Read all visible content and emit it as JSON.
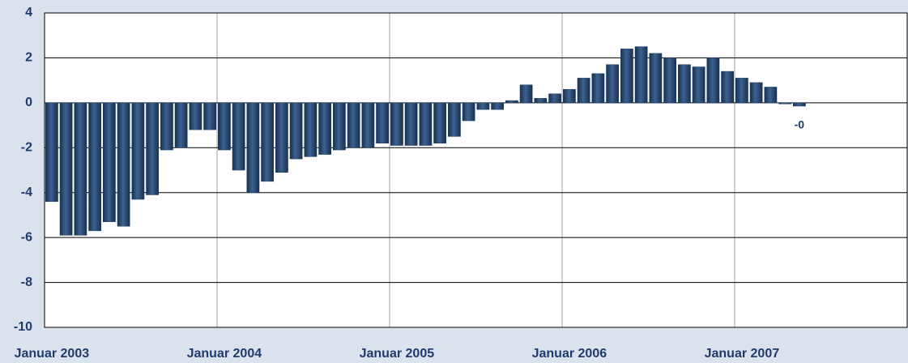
{
  "chart_data": {
    "type": "bar",
    "categories": [
      "Januar 2003",
      null,
      null,
      null,
      null,
      null,
      null,
      null,
      null,
      null,
      null,
      null,
      "Januar 2004",
      null,
      null,
      null,
      null,
      null,
      null,
      null,
      null,
      null,
      null,
      null,
      "Januar 2005",
      null,
      null,
      null,
      null,
      null,
      null,
      null,
      null,
      null,
      null,
      null,
      "Januar 2006",
      null,
      null,
      null,
      null,
      null,
      null,
      null,
      null,
      null,
      null,
      null,
      "Januar 2007",
      null,
      null,
      null,
      null,
      null,
      null,
      null,
      null,
      null,
      null,
      null
    ],
    "values": [
      -4.4,
      -5.9,
      -5.9,
      -5.7,
      -5.3,
      -5.5,
      -4.3,
      -4.1,
      -2.1,
      -2.0,
      -1.2,
      -1.2,
      -2.1,
      -3.0,
      -4.0,
      -3.5,
      -3.1,
      -2.5,
      -2.4,
      -2.3,
      -2.1,
      -2.0,
      -2.0,
      -1.8,
      -1.9,
      -1.9,
      -1.9,
      -1.8,
      -1.5,
      -0.8,
      -0.3,
      -0.3,
      0.1,
      0.8,
      0.2,
      0.4,
      0.6,
      1.1,
      1.3,
      1.7,
      2.4,
      2.5,
      2.2,
      2.0,
      1.7,
      1.6,
      2.0,
      1.4,
      1.1,
      0.9,
      0.7,
      -0.05,
      -0.15,
      null,
      null,
      null,
      null,
      null,
      null,
      null
    ],
    "value_labels": [
      null,
      null,
      null,
      null,
      null,
      null,
      null,
      null,
      null,
      null,
      null,
      null,
      null,
      null,
      null,
      null,
      null,
      null,
      null,
      null,
      null,
      null,
      null,
      null,
      null,
      null,
      null,
      null,
      null,
      null,
      null,
      null,
      null,
      null,
      null,
      null,
      null,
      null,
      null,
      null,
      null,
      null,
      null,
      null,
      null,
      null,
      null,
      null,
      null,
      null,
      null,
      null,
      "-0",
      null,
      null,
      null,
      null,
      null,
      null,
      null
    ],
    "color": "#1f3f66",
    "ylim": [
      -10,
      4
    ],
    "yticks": [
      -10,
      -8,
      -6,
      -4,
      -2,
      0,
      2,
      4
    ],
    "grid": true
  }
}
